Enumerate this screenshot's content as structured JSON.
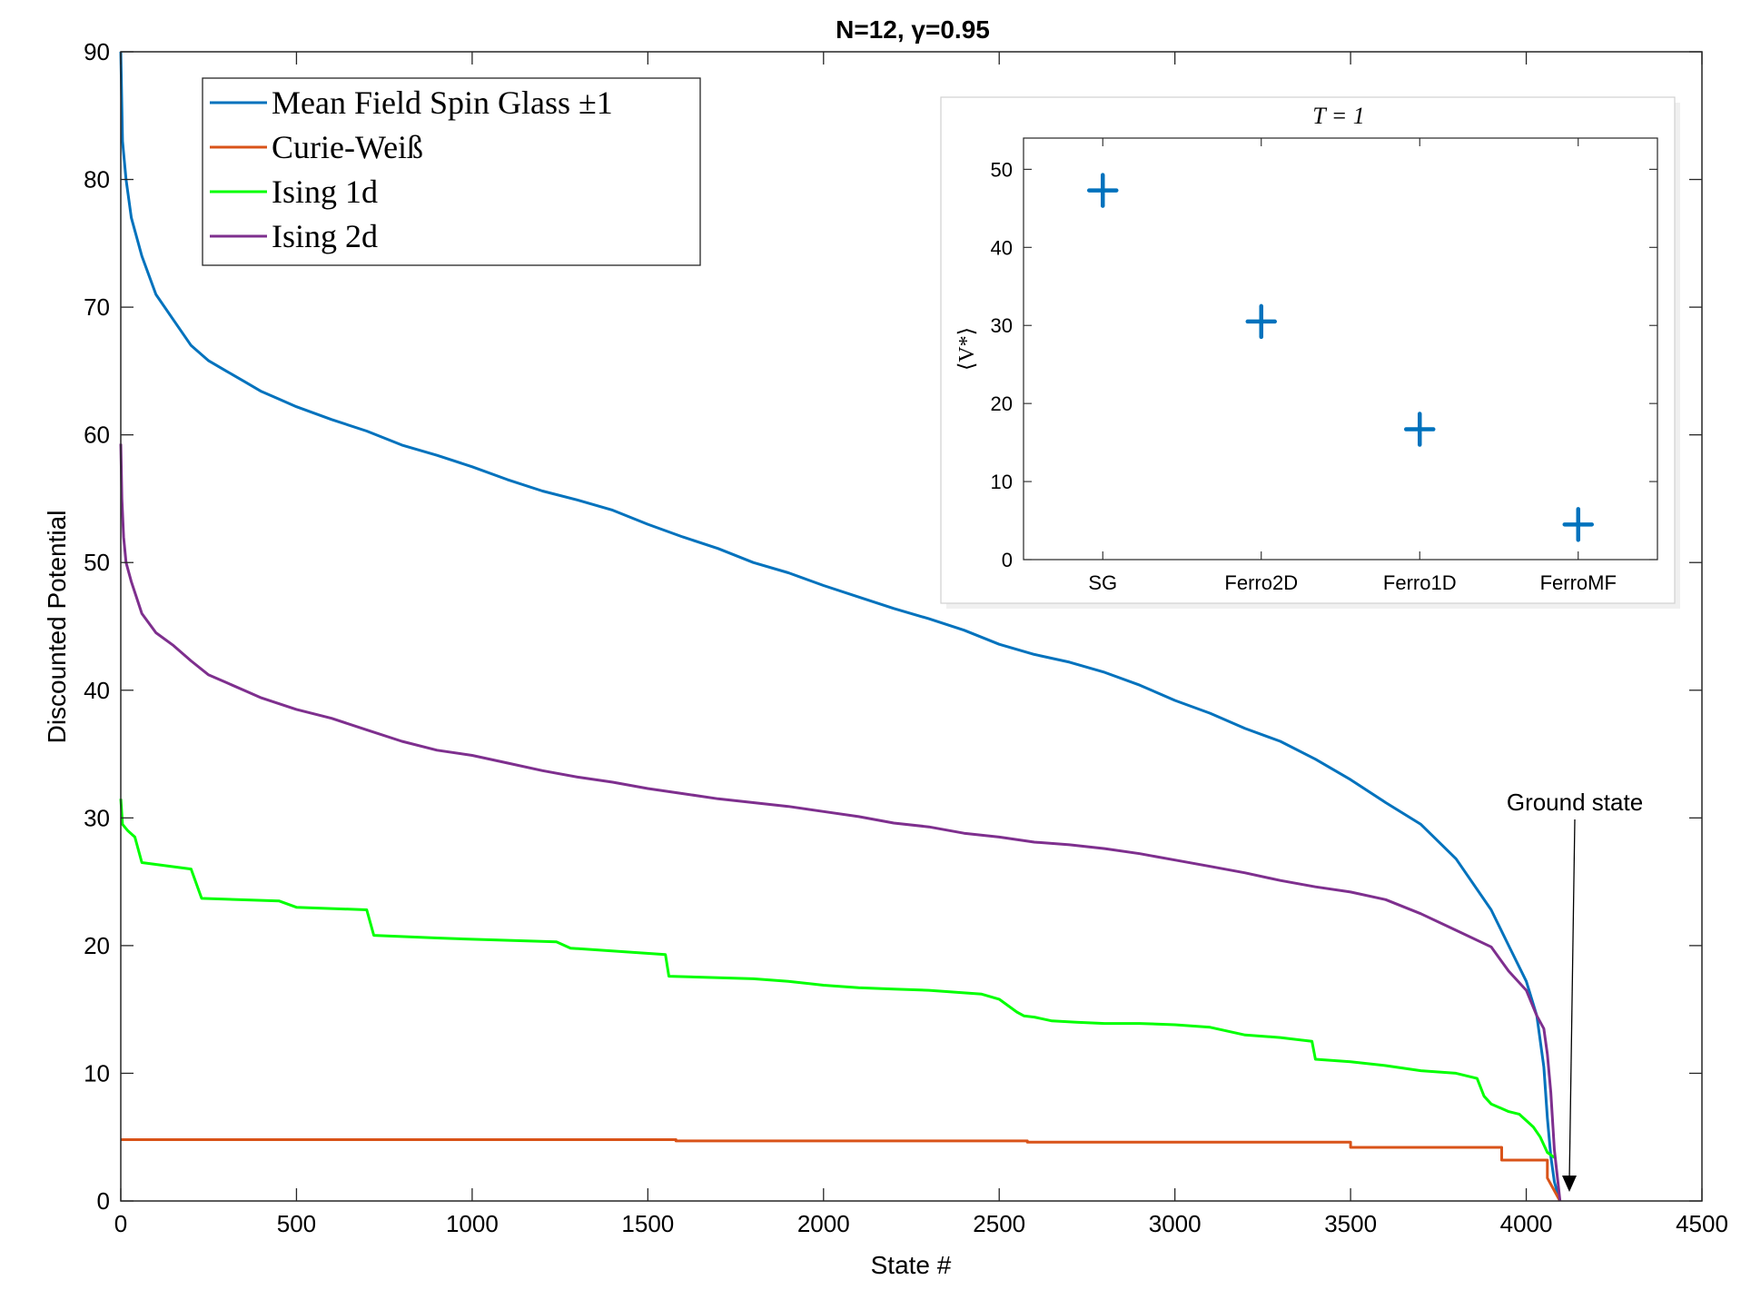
{
  "chart_data": [
    {
      "type": "line",
      "title": "N=12, γ=0.95",
      "xlabel": "State #",
      "ylabel": "Discounted Potential",
      "xlim": [
        0,
        4500
      ],
      "ylim": [
        0,
        90
      ],
      "xticks": [
        0,
        500,
        1000,
        1500,
        2000,
        2500,
        3000,
        3500,
        4000,
        4500
      ],
      "yticks": [
        0,
        10,
        20,
        30,
        40,
        50,
        60,
        70,
        80,
        90
      ],
      "grid": false,
      "legend_position": "top-left",
      "series": [
        {
          "name": "Mean Field Spin Glass ±1",
          "color": "#0072BD",
          "x": [
            0,
            5,
            15,
            30,
            60,
            100,
            150,
            200,
            250,
            300,
            350,
            400,
            450,
            500,
            600,
            700,
            800,
            900,
            1000,
            1100,
            1200,
            1300,
            1400,
            1500,
            1600,
            1700,
            1800,
            1900,
            2000,
            2100,
            2200,
            2300,
            2400,
            2500,
            2600,
            2700,
            2800,
            2900,
            3000,
            3100,
            3200,
            3300,
            3400,
            3500,
            3600,
            3700,
            3800,
            3900,
            3950,
            4000,
            4030,
            4050,
            4060,
            4070,
            4080,
            4090,
            4096
          ],
          "y": [
            90,
            83,
            80,
            77,
            74,
            71,
            69,
            67,
            65.8,
            65,
            64.2,
            63.4,
            62.8,
            62.2,
            61.2,
            60.3,
            59.2,
            58.4,
            57.5,
            56.5,
            55.6,
            54.9,
            54.1,
            53.0,
            52.0,
            51.1,
            50.0,
            49.2,
            48.2,
            47.3,
            46.4,
            45.6,
            44.7,
            43.6,
            42.8,
            42.2,
            41.4,
            40.4,
            39.2,
            38.2,
            37.0,
            36.0,
            34.6,
            33.0,
            31.2,
            29.5,
            26.8,
            22.8,
            20.0,
            17.2,
            14.5,
            10.5,
            6.5,
            3.5,
            1.5,
            0.5,
            0
          ]
        },
        {
          "name": "Curie-Weiß",
          "color": "#D95319",
          "x": [
            0,
            1580,
            1580,
            2580,
            2580,
            3500,
            3500,
            3930,
            3930,
            4060,
            4060,
            4096
          ],
          "y": [
            4.8,
            4.8,
            4.7,
            4.7,
            4.6,
            4.6,
            4.2,
            4.2,
            3.2,
            3.2,
            1.8,
            0
          ]
        },
        {
          "name": "Ising 1d",
          "color": "#00FF00",
          "x": [
            0,
            5,
            20,
            40,
            60,
            200,
            230,
            450,
            500,
            700,
            720,
            900,
            1000,
            1240,
            1280,
            1550,
            1560,
            1800,
            1900,
            2000,
            2100,
            2200,
            2300,
            2450,
            2500,
            2550,
            2570,
            2600,
            2650,
            2720,
            2800,
            2900,
            3000,
            3100,
            3200,
            3300,
            3390,
            3400,
            3500,
            3600,
            3700,
            3800,
            3860,
            3880,
            3900,
            3950,
            3980,
            4000,
            4020,
            4040,
            4060,
            4080
          ],
          "y": [
            31.5,
            29.5,
            29,
            28.5,
            26.5,
            26,
            23.7,
            23.5,
            23,
            22.8,
            20.8,
            20.6,
            20.5,
            20.3,
            19.8,
            19.3,
            17.6,
            17.4,
            17.2,
            16.9,
            16.7,
            16.6,
            16.5,
            16.2,
            15.8,
            14.8,
            14.5,
            14.4,
            14.1,
            14.0,
            13.9,
            13.9,
            13.8,
            13.6,
            13.0,
            12.8,
            12.5,
            11.1,
            10.9,
            10.6,
            10.2,
            10.0,
            9.6,
            8.2,
            7.6,
            7.0,
            6.8,
            6.3,
            5.8,
            5.0,
            3.8,
            3.4
          ]
        },
        {
          "name": "Ising 2d",
          "color": "#7E2F8E",
          "x": [
            0,
            3,
            8,
            15,
            30,
            60,
            100,
            150,
            200,
            250,
            300,
            400,
            500,
            600,
            700,
            800,
            900,
            1000,
            1100,
            1200,
            1300,
            1400,
            1500,
            1600,
            1700,
            1800,
            1900,
            2000,
            2100,
            2200,
            2300,
            2400,
            2500,
            2600,
            2700,
            2800,
            2900,
            3000,
            3100,
            3200,
            3300,
            3400,
            3500,
            3600,
            3700,
            3800,
            3900,
            3950,
            4000,
            4030,
            4050,
            4060,
            4070,
            4080,
            4090,
            4096
          ],
          "y": [
            59.3,
            55,
            52,
            50,
            48.5,
            46,
            44.5,
            43.5,
            42.3,
            41.2,
            40.6,
            39.4,
            38.5,
            37.8,
            36.9,
            36.0,
            35.3,
            34.9,
            34.3,
            33.7,
            33.2,
            32.8,
            32.3,
            31.9,
            31.5,
            31.2,
            30.9,
            30.5,
            30.1,
            29.6,
            29.3,
            28.8,
            28.5,
            28.1,
            27.9,
            27.6,
            27.2,
            26.7,
            26.2,
            25.7,
            25.1,
            24.6,
            24.2,
            23.6,
            22.5,
            21.2,
            19.9,
            18.0,
            16.5,
            14.5,
            13.5,
            11.5,
            8.5,
            4.0,
            1.5,
            0
          ]
        }
      ],
      "annotations": [
        {
          "text": "Ground state",
          "x": 4096,
          "y": 0
        }
      ]
    },
    {
      "type": "scatter",
      "title": "T = 1",
      "ylabel": "⟨V*⟩",
      "categories": [
        "SG",
        "Ferro2D",
        "Ferro1D",
        "FerroMF"
      ],
      "values": [
        47.3,
        30.5,
        16.7,
        4.5
      ],
      "ylim": [
        0,
        54
      ],
      "yticks": [
        0,
        10,
        20,
        30,
        40,
        50
      ],
      "marker": "+",
      "color": "#0072BD",
      "grid": false
    }
  ]
}
